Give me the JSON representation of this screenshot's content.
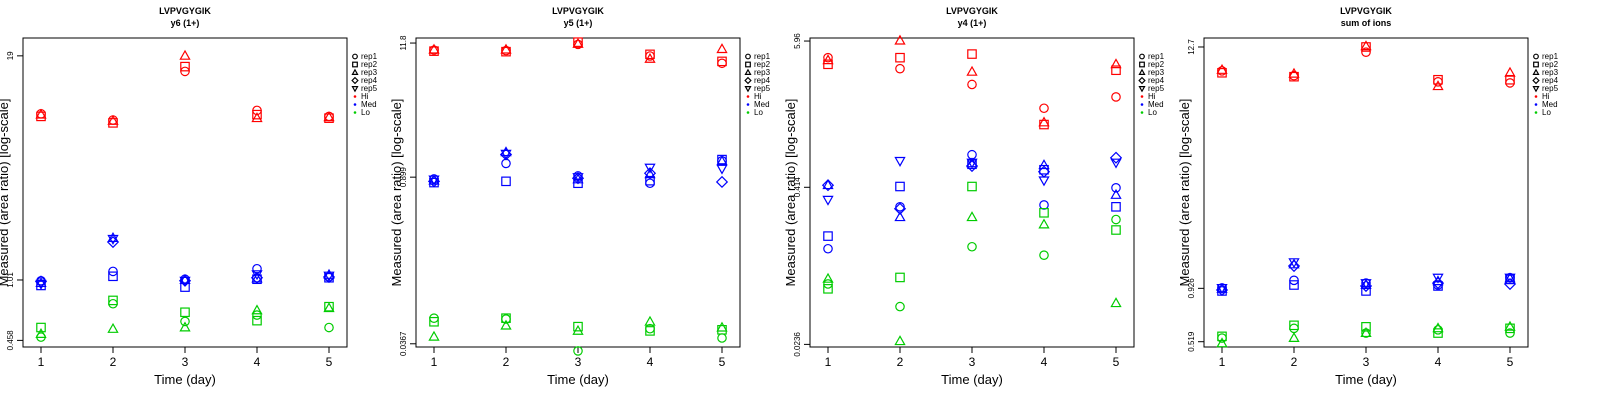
{
  "chart_data": [
    {
      "type": "scatter",
      "title": "LVPVGYGIK",
      "subtitle": "y6 (1+)",
      "xlabel": "Time (day)",
      "ylabel": "Measured (area ratio) [log-scale]",
      "log_y": true,
      "ylim": [
        0.42,
        24
      ],
      "xlim": [
        0.75,
        5.25
      ],
      "x_ticks": [
        "1",
        "2",
        "3",
        "4",
        "5"
      ],
      "y_ticks": [
        {
          "value": 0.458,
          "label": "0.458"
        },
        {
          "value": 1.01,
          "label": "1.01"
        },
        {
          "value": 19,
          "label": "19"
        }
      ],
      "legend_position": "right",
      "series": [
        {
          "level": "Hi",
          "rep": "rep1",
          "values": [
            8.9,
            8.2,
            15.5,
            9.3,
            8.6
          ]
        },
        {
          "level": "Hi",
          "rep": "rep2",
          "values": [
            8.6,
            7.9,
            16.5,
            8.8,
            8.4
          ]
        },
        {
          "level": "Hi",
          "rep": "rep3",
          "values": [
            8.8,
            8.1,
            19.0,
            8.4,
            8.5
          ]
        },
        {
          "level": "Med",
          "rep": "rep1",
          "values": [
            1.0,
            1.13,
            1.02,
            1.17,
            1.05
          ]
        },
        {
          "level": "Med",
          "rep": "rep2",
          "values": [
            0.94,
            1.06,
            0.92,
            1.02,
            1.04
          ]
        },
        {
          "level": "Med",
          "rep": "rep3",
          "values": [
            0.97,
            1.75,
            1.01,
            1.03,
            1.08
          ]
        },
        {
          "level": "Med",
          "rep": "rep4",
          "values": [
            0.99,
            1.66,
            1.0,
            1.04,
            1.05
          ]
        },
        {
          "level": "Med",
          "rep": "rep5",
          "values": [
            0.96,
            1.73,
            1.0,
            1.09,
            1.07
          ]
        },
        {
          "level": "Lo",
          "rep": "rep1",
          "values": [
            0.478,
            0.74,
            0.587,
            0.638,
            0.542
          ]
        },
        {
          "level": "Lo",
          "rep": "rep2",
          "values": [
            0.542,
            0.773,
            0.662,
            0.593,
            0.712
          ]
        },
        {
          "level": "Lo",
          "rep": "rep3",
          "values": [
            0.498,
            0.532,
            0.542,
            0.678,
            0.698
          ]
        }
      ]
    },
    {
      "type": "scatter",
      "title": "LVPVGYGIK",
      "subtitle": "y5 (1+)",
      "xlabel": "Time (day)",
      "ylabel": "Measured (area ratio) [log-scale]",
      "log_y": true,
      "ylim": [
        0.0345,
        13
      ],
      "xlim": [
        0.75,
        5.25
      ],
      "x_ticks": [
        "1",
        "2",
        "3",
        "4",
        "5"
      ],
      "y_ticks": [
        {
          "value": 0.0367,
          "label": "0.0367"
        },
        {
          "value": 0.899,
          "label": "0.899"
        },
        {
          "value": 11.8,
          "label": "11.8"
        }
      ],
      "legend_position": "right",
      "series": [
        {
          "level": "Hi",
          "rep": "rep1",
          "values": [
            10.3,
            10.2,
            11.5,
            9.2,
            8.0
          ]
        },
        {
          "level": "Hi",
          "rep": "rep2",
          "values": [
            10.1,
            10.0,
            12.0,
            9.5,
            8.3
          ]
        },
        {
          "level": "Hi",
          "rep": "rep3",
          "values": [
            10.4,
            10.4,
            11.6,
            8.7,
            10.5
          ]
        },
        {
          "level": "Med",
          "rep": "rep1",
          "values": [
            0.87,
            1.17,
            0.92,
            0.8,
            1.23
          ]
        },
        {
          "level": "Med",
          "rep": "rep2",
          "values": [
            0.81,
            0.83,
            0.8,
            0.84,
            1.26
          ]
        },
        {
          "level": "Med",
          "rep": "rep3",
          "values": [
            0.84,
            1.45,
            0.86,
            0.95,
            1.22
          ]
        },
        {
          "level": "Med",
          "rep": "rep4",
          "values": [
            0.83,
            1.39,
            0.88,
            0.97,
            0.82
          ]
        },
        {
          "level": "Med",
          "rep": "rep5",
          "values": [
            0.86,
            1.41,
            0.9,
            1.08,
            1.06
          ]
        },
        {
          "level": "Lo",
          "rep": "rep1",
          "values": [
            0.06,
            0.059,
            0.032,
            0.049,
            0.041
          ]
        },
        {
          "level": "Lo",
          "rep": "rep2",
          "values": [
            0.056,
            0.06,
            0.051,
            0.047,
            0.048
          ]
        },
        {
          "level": "Lo",
          "rep": "rep3",
          "values": [
            0.042,
            0.052,
            0.047,
            0.056,
            0.05
          ]
        }
      ]
    },
    {
      "type": "scatter",
      "title": "LVPVGYGIK",
      "subtitle": "y4 (1+)",
      "xlabel": "Time (day)",
      "ylabel": "Measured (area ratio) [log-scale]",
      "log_y": true,
      "ylim": [
        0.0225,
        6.3
      ],
      "xlim": [
        0.75,
        5.25
      ],
      "x_ticks": [
        "1",
        "2",
        "3",
        "4",
        "5"
      ],
      "y_ticks": [
        {
          "value": 0.0236,
          "label": "0.0236"
        },
        {
          "value": 0.414,
          "label": "0.414"
        },
        {
          "value": 5.96,
          "label": "5.96"
        }
      ],
      "legend_position": "right",
      "series": [
        {
          "level": "Hi",
          "rep": "rep1",
          "values": [
            4.4,
            3.6,
            2.7,
            1.75,
            2.15
          ]
        },
        {
          "level": "Hi",
          "rep": "rep2",
          "values": [
            3.9,
            4.4,
            4.7,
            1.3,
            3.5
          ]
        },
        {
          "level": "Hi",
          "rep": "rep3",
          "values": [
            4.2,
            6.0,
            3.4,
            1.35,
            3.9
          ]
        },
        {
          "level": "Med",
          "rep": "rep1",
          "values": [
            0.135,
            0.29,
            0.75,
            0.3,
            0.41
          ]
        },
        {
          "level": "Med",
          "rep": "rep2",
          "values": [
            0.17,
            0.42,
            0.63,
            0.57,
            0.29
          ]
        },
        {
          "level": "Med",
          "rep": "rep3",
          "values": [
            0.43,
            0.24,
            0.64,
            0.62,
            0.36
          ]
        },
        {
          "level": "Med",
          "rep": "rep4",
          "values": [
            0.43,
            0.28,
            0.61,
            0.55,
            0.71
          ]
        },
        {
          "level": "Med",
          "rep": "rep5",
          "values": [
            0.33,
            0.67,
            0.65,
            0.47,
            0.65
          ]
        },
        {
          "level": "Lo",
          "rep": "rep1",
          "values": [
            0.071,
            0.047,
            0.14,
            0.12,
            0.23
          ]
        },
        {
          "level": "Lo",
          "rep": "rep2",
          "values": [
            0.065,
            0.08,
            0.42,
            0.26,
            0.19
          ]
        },
        {
          "level": "Lo",
          "rep": "rep3",
          "values": [
            0.078,
            0.025,
            0.24,
            0.21,
            0.05
          ]
        }
      ]
    },
    {
      "type": "scatter",
      "title": "LVPVGYGIK",
      "subtitle": "sum of ions",
      "xlabel": "Time (day)",
      "ylabel": "Measured (area ratio) [log-scale]",
      "log_y": true,
      "ylim": [
        0.49,
        14
      ],
      "xlim": [
        0.75,
        5.25
      ],
      "x_ticks": [
        "1",
        "2",
        "3",
        "4",
        "5"
      ],
      "y_ticks": [
        {
          "value": 0.519,
          "label": "0.519"
        },
        {
          "value": 0.926,
          "label": "0.926"
        },
        {
          "value": 12.7,
          "label": "12.7"
        }
      ],
      "legend_position": "right",
      "series": [
        {
          "level": "Hi",
          "rep": "rep1",
          "values": [
            9.8,
            9.3,
            12.0,
            8.7,
            8.6
          ]
        },
        {
          "level": "Hi",
          "rep": "rep2",
          "values": [
            9.6,
            9.2,
            12.7,
            8.9,
            8.9
          ]
        },
        {
          "level": "Hi",
          "rep": "rep3",
          "values": [
            9.9,
            9.5,
            12.8,
            8.3,
            9.6
          ]
        },
        {
          "level": "Med",
          "rep": "rep1",
          "values": [
            0.93,
            1.01,
            0.98,
            0.96,
            1.04
          ]
        },
        {
          "level": "Med",
          "rep": "rep2",
          "values": [
            0.9,
            0.96,
            0.9,
            0.95,
            1.02
          ]
        },
        {
          "level": "Med",
          "rep": "rep3",
          "values": [
            0.92,
            1.2,
            0.96,
            1.0,
            1.03
          ]
        },
        {
          "level": "Med",
          "rep": "rep4",
          "values": [
            0.91,
            1.18,
            0.95,
            0.98,
            0.97
          ]
        },
        {
          "level": "Med",
          "rep": "rep5",
          "values": [
            0.93,
            1.23,
            0.98,
            1.04,
            1.04
          ]
        },
        {
          "level": "Lo",
          "rep": "rep1",
          "values": [
            0.54,
            0.6,
            0.57,
            0.59,
            0.57
          ]
        },
        {
          "level": "Lo",
          "rep": "rep2",
          "values": [
            0.55,
            0.62,
            0.61,
            0.57,
            0.6
          ]
        },
        {
          "level": "Lo",
          "rep": "rep3",
          "values": [
            0.51,
            0.54,
            0.57,
            0.6,
            0.61
          ]
        }
      ]
    }
  ],
  "legend": {
    "reps": [
      {
        "label": "rep1",
        "shape": "circle"
      },
      {
        "label": "rep2",
        "shape": "square"
      },
      {
        "label": "rep3",
        "shape": "triangle-up"
      },
      {
        "label": "rep4",
        "shape": "diamond"
      },
      {
        "label": "rep5",
        "shape": "triangle-down"
      }
    ],
    "levels": [
      {
        "label": "Hi",
        "color": "#ff0000"
      },
      {
        "label": "Med",
        "color": "#0000ff"
      },
      {
        "label": "Lo",
        "color": "#00cc00"
      }
    ]
  }
}
